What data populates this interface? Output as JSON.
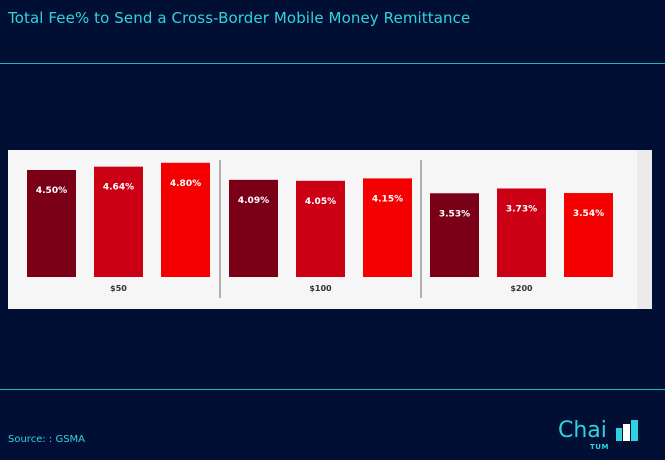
{
  "title": "Total Fee% to Send a Cross-Border Mobile Money Remittance",
  "source": "Source: : GSMA",
  "logo": {
    "text": "Chai",
    "sub": "TUM",
    "icon": "chaitum-logo-icon"
  },
  "colors": {
    "background": "#020f35",
    "accent": "#2fd3df",
    "bar_dark": "#7a0018",
    "bar_mid": "#cc0014",
    "bar_bright": "#f40000"
  },
  "chart_data": {
    "type": "bar",
    "categories": [
      "$50",
      "$100",
      "$200"
    ],
    "series": [
      {
        "values": [
          4.5,
          4.09,
          3.53
        ],
        "labels": [
          "4.50%",
          "4.09%",
          "3.53%"
        ]
      },
      {
        "values": [
          4.64,
          4.05,
          3.73
        ],
        "labels": [
          "4.64%",
          "4.05%",
          "3.73%"
        ]
      },
      {
        "values": [
          4.8,
          4.15,
          3.54
        ],
        "labels": [
          "4.80%",
          "4.15%",
          "3.54%"
        ]
      }
    ],
    "title": "",
    "xlabel": "",
    "ylabel": "",
    "ylim": [
      0,
      5
    ],
    "grid": false,
    "legend": "none"
  }
}
